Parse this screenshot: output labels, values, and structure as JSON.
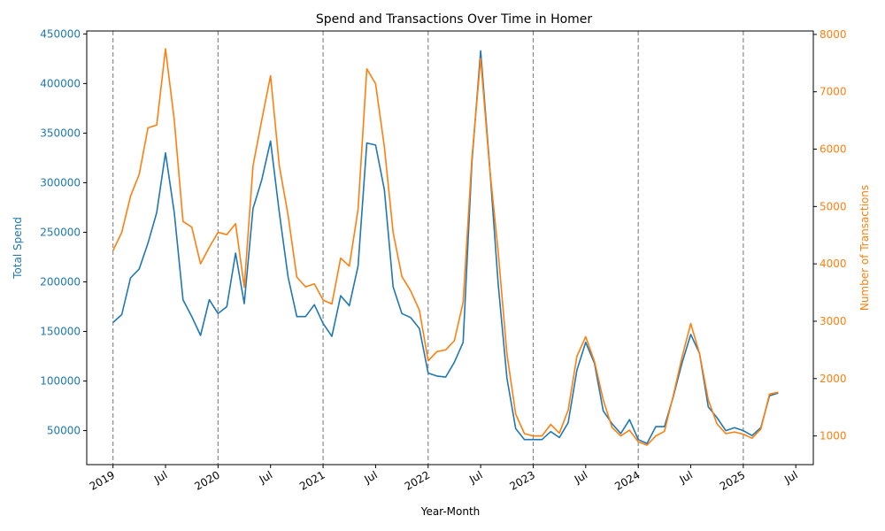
{
  "chart_data": {
    "type": "line",
    "title": "Spend and Transactions Over Time in Homer",
    "xlabel": "Year-Month",
    "ylabel_left": "Total Spend",
    "ylabel_right": "Number of Transactions",
    "x_start": "2019-01",
    "x": [
      "2019-01",
      "2019-02",
      "2019-03",
      "2019-04",
      "2019-05",
      "2019-06",
      "2019-07",
      "2019-08",
      "2019-09",
      "2019-10",
      "2019-11",
      "2019-12",
      "2020-01",
      "2020-02",
      "2020-03",
      "2020-04",
      "2020-05",
      "2020-06",
      "2020-07",
      "2020-08",
      "2020-09",
      "2020-10",
      "2020-11",
      "2020-12",
      "2021-01",
      "2021-02",
      "2021-03",
      "2021-04",
      "2021-05",
      "2021-06",
      "2021-07",
      "2021-08",
      "2021-09",
      "2021-10",
      "2021-11",
      "2021-12",
      "2022-01",
      "2022-02",
      "2022-03",
      "2022-04",
      "2022-05",
      "2022-06",
      "2022-07",
      "2022-08",
      "2022-09",
      "2022-10",
      "2022-11",
      "2022-12",
      "2023-01",
      "2023-02",
      "2023-03",
      "2023-04",
      "2023-05",
      "2023-06",
      "2023-07",
      "2023-08",
      "2023-09",
      "2023-10",
      "2023-11",
      "2023-12",
      "2024-01",
      "2024-02",
      "2024-03",
      "2024-04",
      "2024-05",
      "2024-06",
      "2024-07",
      "2024-08",
      "2024-09",
      "2024-10",
      "2024-11",
      "2024-12",
      "2025-01",
      "2025-02",
      "2025-03",
      "2025-04",
      "2025-05"
    ],
    "series": [
      {
        "name": "Total Spend",
        "axis": "left",
        "color": "#1f77b4",
        "values": [
          159000,
          167000,
          204000,
          213000,
          239000,
          270000,
          330000,
          270000,
          182000,
          165000,
          146000,
          182000,
          168000,
          175000,
          229000,
          178000,
          274000,
          303000,
          342000,
          270000,
          205000,
          165000,
          165000,
          177000,
          158000,
          145000,
          186000,
          176000,
          216000,
          340000,
          338000,
          293000,
          195000,
          168000,
          164000,
          153000,
          108000,
          105000,
          104000,
          119000,
          139000,
          320000,
          433000,
          320000,
          198000,
          103000,
          52000,
          41000,
          41000,
          41000,
          49000,
          43000,
          58000,
          111000,
          139000,
          118000,
          70000,
          57000,
          47000,
          61000,
          41000,
          37000,
          54000,
          54000,
          84000,
          118000,
          147000,
          128000,
          74000,
          63000,
          50000,
          53000,
          50000,
          45000,
          53000,
          85000,
          88000
        ]
      },
      {
        "name": "Number of Transactions",
        "axis": "right",
        "color": "#ff7f0e",
        "values": [
          4230,
          4550,
          5180,
          5560,
          6370,
          6420,
          7750,
          6510,
          4740,
          4640,
          4000,
          4290,
          4550,
          4510,
          4700,
          3590,
          5710,
          6510,
          7280,
          5710,
          4850,
          3770,
          3600,
          3650,
          3370,
          3300,
          4100,
          3960,
          4950,
          7400,
          7140,
          6040,
          4550,
          3780,
          3530,
          3190,
          2310,
          2470,
          2500,
          2660,
          3330,
          5840,
          7580,
          5720,
          4210,
          2430,
          1380,
          1040,
          1000,
          1000,
          1200,
          1050,
          1450,
          2390,
          2730,
          2300,
          1630,
          1150,
          1000,
          1100,
          900,
          840,
          1000,
          1080,
          1700,
          2370,
          2960,
          2440,
          1630,
          1210,
          1040,
          1070,
          1030,
          960,
          1120,
          1730,
          1760
        ]
      }
    ],
    "x_ticks": [
      {
        "date": "2019-01",
        "label": "2019",
        "major": true
      },
      {
        "date": "2019-07",
        "label": "Jul",
        "major": false
      },
      {
        "date": "2020-01",
        "label": "2020",
        "major": true
      },
      {
        "date": "2020-07",
        "label": "Jul",
        "major": false
      },
      {
        "date": "2021-01",
        "label": "2021",
        "major": true
      },
      {
        "date": "2021-07",
        "label": "Jul",
        "major": false
      },
      {
        "date": "2022-01",
        "label": "2022",
        "major": true
      },
      {
        "date": "2022-07",
        "label": "Jul",
        "major": false
      },
      {
        "date": "2023-01",
        "label": "2023",
        "major": true
      },
      {
        "date": "2023-07",
        "label": "Jul",
        "major": false
      },
      {
        "date": "2024-01",
        "label": "2024",
        "major": true
      },
      {
        "date": "2024-07",
        "label": "Jul",
        "major": false
      },
      {
        "date": "2025-01",
        "label": "2025",
        "major": true
      },
      {
        "date": "2025-07",
        "label": "Jul",
        "major": false
      }
    ],
    "x_range": [
      "2018-10",
      "2025-09"
    ],
    "y_left_ticks": [
      50000,
      100000,
      150000,
      200000,
      250000,
      300000,
      350000,
      400000,
      450000
    ],
    "y_left_range": [
      15700,
      453000
    ],
    "y_right_ticks": [
      1000,
      2000,
      3000,
      4000,
      5000,
      6000,
      7000,
      8000
    ],
    "y_right_range": [
      500,
      8060
    ],
    "vlines_at": [
      "2019-01",
      "2020-01",
      "2021-01",
      "2022-01",
      "2023-01",
      "2024-01",
      "2025-01"
    ],
    "grid": false,
    "legend": "none"
  }
}
